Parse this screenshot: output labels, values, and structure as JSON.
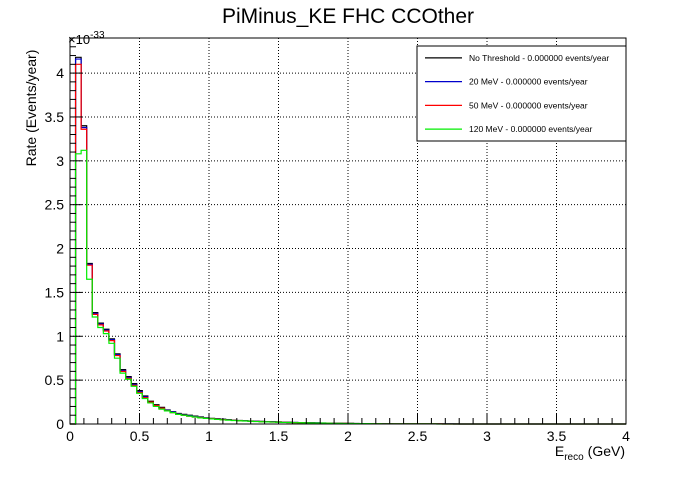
{
  "chart_data": {
    "type": "line",
    "title": "PiMinus_KE FHC CCOther",
    "xlabel_main": "E",
    "xlabel_sub": "reco",
    "xlabel_unit": "(GeV)",
    "ylabel": "Rate (Events/year)",
    "y_exponent_prefix": "×10",
    "y_exponent": "-33",
    "xlim": [
      0,
      4
    ],
    "ylim": [
      0,
      4.4
    ],
    "x_ticks": [
      "0",
      "0.5",
      "1",
      "1.5",
      "2",
      "2.5",
      "3",
      "3.5",
      "4"
    ],
    "y_ticks": [
      "0",
      "0.5",
      "1",
      "1.5",
      "2",
      "2.5",
      "3",
      "3.5",
      "4"
    ],
    "grid": true,
    "legend_position": "top-right",
    "bin_width": 0.04,
    "series": [
      {
        "name": "No Threshold - 0.000000 events/year",
        "color": "#000000",
        "values": [
          0.0,
          4.18,
          3.4,
          1.83,
          1.27,
          1.15,
          1.08,
          0.97,
          0.8,
          0.62,
          0.54,
          0.46,
          0.38,
          0.32,
          0.26,
          0.22,
          0.19,
          0.16,
          0.14,
          0.12,
          0.11,
          0.1,
          0.09,
          0.08,
          0.07,
          0.065,
          0.06,
          0.055,
          0.05,
          0.045,
          0.04,
          0.038,
          0.035,
          0.032,
          0.03,
          0.028,
          0.026,
          0.024,
          0.022,
          0.02,
          0.018,
          0.016,
          0.015,
          0.014,
          0.013,
          0.012,
          0.011,
          0.01,
          0.009,
          0.008,
          0.007,
          0.006,
          0.005,
          0.005,
          0.004,
          0.004,
          0.003,
          0.003,
          0.002,
          0.002,
          0.002,
          0.001,
          0.001,
          0.001,
          0.001,
          0.001,
          0.001,
          0.001,
          0.001,
          0.001,
          0.0,
          0.0,
          0.0,
          0.0,
          0.0,
          0.0,
          0.0,
          0.0,
          0.0,
          0.0,
          0.0,
          0.0,
          0.0,
          0.0,
          0.0,
          0.0,
          0.0,
          0.0,
          0.0,
          0.0,
          0.0,
          0.0,
          0.0,
          0.0,
          0.0,
          0.0,
          0.0,
          0.0,
          0.0,
          0.0
        ]
      },
      {
        "name": "20 MeV - 0.000000 events/year",
        "color": "#0000cc",
        "values": [
          0.0,
          4.16,
          3.38,
          1.82,
          1.26,
          1.14,
          1.07,
          0.96,
          0.79,
          0.61,
          0.53,
          0.45,
          0.37,
          0.31,
          0.25,
          0.21,
          0.18,
          0.155,
          0.135,
          0.115,
          0.105,
          0.095,
          0.085,
          0.075,
          0.068,
          0.062,
          0.057,
          0.052,
          0.048,
          0.043,
          0.039,
          0.036,
          0.033,
          0.03,
          0.028,
          0.026,
          0.024,
          0.022,
          0.02,
          0.018,
          0.017,
          0.015,
          0.014,
          0.013,
          0.012,
          0.011,
          0.01,
          0.009,
          0.008,
          0.007,
          0.006,
          0.005,
          0.005,
          0.004,
          0.004,
          0.003,
          0.003,
          0.002,
          0.002,
          0.002,
          0.001,
          0.001,
          0.001,
          0.001,
          0.001,
          0.001,
          0.001,
          0.001,
          0.001,
          0.0,
          0.0,
          0.0,
          0.0,
          0.0,
          0.0,
          0.0,
          0.0,
          0.0,
          0.0,
          0.0,
          0.0,
          0.0,
          0.0,
          0.0,
          0.0,
          0.0,
          0.0,
          0.0,
          0.0,
          0.0,
          0.0,
          0.0,
          0.0,
          0.0,
          0.0,
          0.0,
          0.0,
          0.0,
          0.0,
          0.0
        ]
      },
      {
        "name": "50 MeV - 0.000000 events/year",
        "color": "#ff0000",
        "values": [
          0.0,
          4.1,
          3.36,
          1.81,
          1.25,
          1.13,
          1.06,
          0.95,
          0.78,
          0.6,
          0.52,
          0.44,
          0.36,
          0.3,
          0.25,
          0.21,
          0.18,
          0.15,
          0.13,
          0.11,
          0.1,
          0.09,
          0.08,
          0.072,
          0.065,
          0.06,
          0.055,
          0.05,
          0.046,
          0.042,
          0.038,
          0.035,
          0.032,
          0.029,
          0.027,
          0.025,
          0.023,
          0.021,
          0.019,
          0.017,
          0.016,
          0.014,
          0.013,
          0.012,
          0.011,
          0.01,
          0.009,
          0.008,
          0.007,
          0.007,
          0.006,
          0.005,
          0.004,
          0.004,
          0.003,
          0.003,
          0.002,
          0.002,
          0.002,
          0.001,
          0.001,
          0.001,
          0.001,
          0.001,
          0.001,
          0.001,
          0.001,
          0.0,
          0.0,
          0.0,
          0.0,
          0.0,
          0.0,
          0.0,
          0.0,
          0.0,
          0.0,
          0.0,
          0.0,
          0.0,
          0.0,
          0.0,
          0.0,
          0.0,
          0.0,
          0.0,
          0.0,
          0.0,
          0.0,
          0.0,
          0.0,
          0.0,
          0.0,
          0.0,
          0.0,
          0.0,
          0.0,
          0.0,
          0.0,
          0.0
        ]
      },
      {
        "name": "120 MeV - 0.000000 events/year",
        "color": "#00ee00",
        "values": [
          0.0,
          3.08,
          3.12,
          1.65,
          1.22,
          1.1,
          1.03,
          0.92,
          0.75,
          0.58,
          0.51,
          0.43,
          0.35,
          0.29,
          0.24,
          0.2,
          0.17,
          0.15,
          0.13,
          0.11,
          0.1,
          0.09,
          0.08,
          0.07,
          0.064,
          0.058,
          0.053,
          0.048,
          0.044,
          0.04,
          0.037,
          0.034,
          0.031,
          0.028,
          0.026,
          0.024,
          0.022,
          0.02,
          0.018,
          0.017,
          0.015,
          0.014,
          0.013,
          0.012,
          0.011,
          0.01,
          0.009,
          0.008,
          0.007,
          0.006,
          0.006,
          0.005,
          0.004,
          0.004,
          0.003,
          0.003,
          0.002,
          0.002,
          0.002,
          0.001,
          0.001,
          0.001,
          0.001,
          0.001,
          0.001,
          0.001,
          0.0,
          0.0,
          0.0,
          0.0,
          0.0,
          0.0,
          0.0,
          0.0,
          0.0,
          0.0,
          0.0,
          0.0,
          0.0,
          0.0,
          0.0,
          0.0,
          0.0,
          0.0,
          0.0,
          0.0,
          0.0,
          0.0,
          0.0,
          0.0,
          0.0,
          0.0,
          0.0,
          0.0,
          0.0,
          0.0,
          0.0,
          0.0,
          0.0,
          0.0
        ]
      }
    ]
  }
}
